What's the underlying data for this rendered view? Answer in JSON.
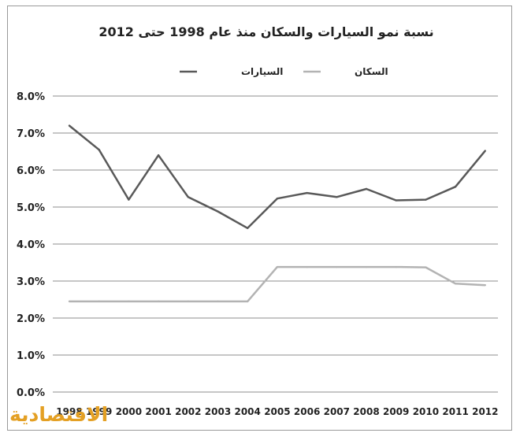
{
  "chart_data": {
    "type": "line",
    "title": "نسبة نمو السيارات والسكان منذ عام 1998 حتى 2012",
    "xlabel": "",
    "ylabel": "",
    "categories": [
      "1998",
      "1999",
      "2000",
      "2001",
      "2002",
      "2003",
      "2004",
      "2005",
      "2006",
      "2007",
      "2008",
      "2009",
      "2010",
      "2011",
      "2012"
    ],
    "ylim": [
      0,
      8
    ],
    "y_ticks": [
      "0.0%",
      "1.0%",
      "2.0%",
      "3.0%",
      "4.0%",
      "5.0%",
      "6.0%",
      "7.0%",
      "8.0%"
    ],
    "grid": true,
    "legend_position": "top",
    "series": [
      {
        "name": "السيارات",
        "color": "#595959",
        "values": [
          7.2,
          6.55,
          5.2,
          6.4,
          5.27,
          4.88,
          4.43,
          5.23,
          5.38,
          5.27,
          5.49,
          5.18,
          5.2,
          5.55,
          6.52
        ]
      },
      {
        "name": "السكان",
        "color": "#b3b3b3",
        "values": [
          2.45,
          2.45,
          2.45,
          2.45,
          2.45,
          2.45,
          2.45,
          3.38,
          3.38,
          3.38,
          3.38,
          3.38,
          3.37,
          2.93,
          2.89
        ]
      }
    ]
  },
  "logo_text": "الاقتصادية"
}
